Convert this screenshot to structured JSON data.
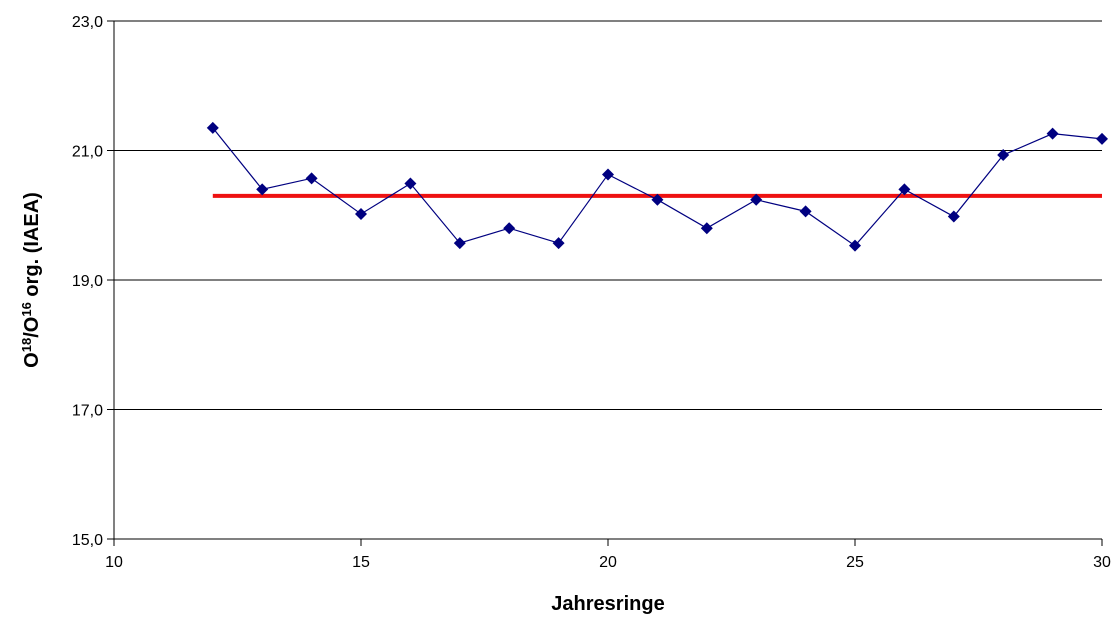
{
  "chart_data": {
    "type": "line",
    "xlabel": "Jahresringe",
    "ylabel": {
      "parts": [
        "O",
        "18",
        "/O",
        "16",
        " org. (IAEA)"
      ]
    },
    "xlim": [
      10,
      30
    ],
    "ylim": [
      15,
      23
    ],
    "x_ticks": [
      "10",
      "15",
      "20",
      "25",
      "30"
    ],
    "y_ticks": [
      "15,0",
      "17,0",
      "19,0",
      "21,0",
      "23,0"
    ],
    "grid": {
      "horizontal": true,
      "vertical": false
    },
    "series": [
      {
        "marker": "diamond",
        "color": "#000080",
        "x": [
          12,
          13,
          14,
          15,
          16,
          17,
          18,
          19,
          20,
          21,
          22,
          23,
          24,
          25,
          26,
          27,
          28,
          29,
          30
        ],
        "y": [
          21.35,
          20.4,
          20.57,
          20.02,
          20.49,
          19.57,
          19.8,
          19.57,
          20.63,
          20.24,
          19.8,
          20.24,
          20.06,
          19.53,
          20.4,
          19.98,
          20.93,
          21.26,
          21.18
        ]
      },
      {
        "color": "#ee1111",
        "x": [
          12,
          30
        ],
        "y": [
          20.3,
          20.3
        ]
      }
    ]
  }
}
